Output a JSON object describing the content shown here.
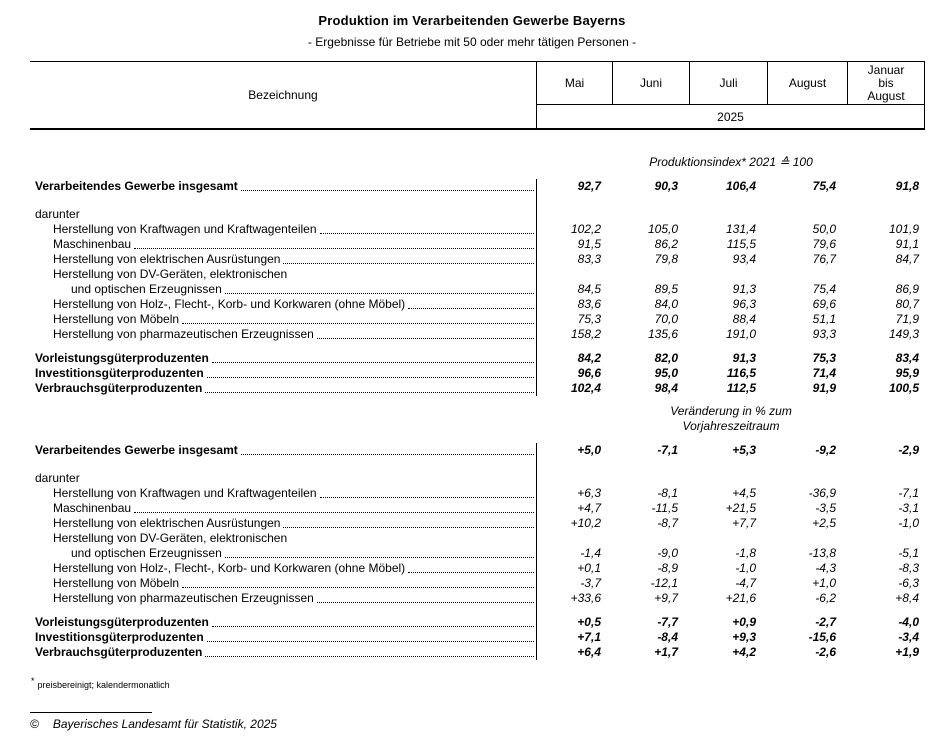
{
  "title": "Produktion im Verarbeitenden Gewerbe Bayerns",
  "subtitle": "- Ergebnisse für Betriebe mit 50 oder mehr tätigen Personen -",
  "table": {
    "label_header": "Bezeichnung",
    "year": "2025",
    "columns": [
      "Mai",
      "Juni",
      "Juli",
      "August",
      "Januar\nbis\nAugust"
    ],
    "sections": [
      {
        "header": "Produktionsindex* 2021 ≙ 100",
        "rows_note": "index values"
      },
      {
        "header": "Veränderung in % zum\nVorjahreszeitraum",
        "rows_note": "percentage change values"
      }
    ],
    "rows": [
      {
        "t": "gap",
        "h": 25,
        "line": false
      },
      {
        "t": "sec",
        "label": "Produktionsindex* 2021 ≙ 100",
        "h": 15
      },
      {
        "t": "gap",
        "h": 9,
        "line": false
      },
      {
        "t": "row",
        "bold": true,
        "indent": 0,
        "dots": true,
        "line": true,
        "label": "Verarbeitendes Gewerbe insgesamt",
        "values": [
          "92,7",
          "90,3",
          "106,4",
          "75,4",
          "91,8"
        ]
      },
      {
        "t": "gap",
        "h": 13,
        "line": true
      },
      {
        "t": "row",
        "bold": false,
        "indent": 0,
        "dots": false,
        "line": true,
        "label": "darunter",
        "values": []
      },
      {
        "t": "row",
        "bold": false,
        "indent": 1,
        "dots": true,
        "line": true,
        "label": "Herstellung von Kraftwagen und Kraftwagenteilen",
        "values": [
          "102,2",
          "105,0",
          "131,4",
          "50,0",
          "101,9"
        ]
      },
      {
        "t": "row",
        "bold": false,
        "indent": 1,
        "dots": true,
        "line": true,
        "label": "Maschinenbau",
        "values": [
          "91,5",
          "86,2",
          "115,5",
          "79,6",
          "91,1"
        ]
      },
      {
        "t": "row",
        "bold": false,
        "indent": 1,
        "dots": true,
        "line": true,
        "label": "Herstellung von elektrischen Ausrüstungen",
        "values": [
          "83,3",
          "79,8",
          "93,4",
          "76,7",
          "84,7"
        ]
      },
      {
        "t": "row",
        "bold": false,
        "indent": 1,
        "dots": false,
        "line": true,
        "label": "Herstellung von DV-Geräten, elektronischen",
        "values": []
      },
      {
        "t": "row",
        "bold": false,
        "indent": 2,
        "dots": true,
        "line": true,
        "label": "und optischen Erzeugnissen",
        "values": [
          "84,5",
          "89,5",
          "91,3",
          "75,4",
          "86,9"
        ]
      },
      {
        "t": "row",
        "bold": false,
        "indent": 1,
        "dots": true,
        "line": true,
        "label": "Herstellung von Holz-, Flecht-, Korb- und Korkwaren (ohne Möbel)",
        "values": [
          "83,6",
          "84,0",
          "96,3",
          "69,6",
          "80,7"
        ]
      },
      {
        "t": "row",
        "bold": false,
        "indent": 1,
        "dots": true,
        "line": true,
        "label": "Herstellung von Möbeln",
        "values": [
          "75,3",
          "70,0",
          "88,4",
          "51,1",
          "71,9"
        ]
      },
      {
        "t": "row",
        "bold": false,
        "indent": 1,
        "dots": true,
        "line": true,
        "label": "Herstellung von pharmazeutischen Erzeugnissen",
        "values": [
          "158,2",
          "135,6",
          "191,0",
          "93,3",
          "149,3"
        ]
      },
      {
        "t": "gap",
        "h": 9,
        "line": true
      },
      {
        "t": "row",
        "bold": true,
        "indent": 0,
        "dots": true,
        "line": true,
        "label": "Vorleistungsgüterproduzenten",
        "values": [
          "84,2",
          "82,0",
          "91,3",
          "75,3",
          "83,4"
        ]
      },
      {
        "t": "row",
        "bold": true,
        "indent": 0,
        "dots": true,
        "line": true,
        "label": "Investitionsgüterproduzenten",
        "values": [
          "96,6",
          "95,0",
          "116,5",
          "71,4",
          "95,9"
        ]
      },
      {
        "t": "row",
        "bold": true,
        "indent": 0,
        "dots": true,
        "line": true,
        "label": "Verbrauchsgüterproduzenten",
        "values": [
          "102,4",
          "98,4",
          "112,5",
          "91,9",
          "100,5"
        ]
      },
      {
        "t": "gap",
        "h": 8,
        "line": false
      },
      {
        "t": "sec",
        "label": "Veränderung in % zum\nVorjahreszeitraum",
        "h": 30
      },
      {
        "t": "gap",
        "h": 9,
        "line": false
      },
      {
        "t": "row",
        "bold": true,
        "indent": 0,
        "dots": true,
        "line": true,
        "label": "Verarbeitendes Gewerbe insgesamt",
        "values": [
          "+5,0",
          "-7,1",
          "+5,3",
          "-9,2",
          "-2,9"
        ]
      },
      {
        "t": "gap",
        "h": 13,
        "line": true
      },
      {
        "t": "row",
        "bold": false,
        "indent": 0,
        "dots": false,
        "line": true,
        "label": "darunter",
        "values": []
      },
      {
        "t": "row",
        "bold": false,
        "indent": 1,
        "dots": true,
        "line": true,
        "label": "Herstellung von Kraftwagen und Kraftwagenteilen",
        "values": [
          "+6,3",
          "-8,1",
          "+4,5",
          "-36,9",
          "-7,1"
        ]
      },
      {
        "t": "row",
        "bold": false,
        "indent": 1,
        "dots": true,
        "line": true,
        "label": "Maschinenbau",
        "values": [
          "+4,7",
          "-11,5",
          "+21,5",
          "-3,5",
          "-3,1"
        ]
      },
      {
        "t": "row",
        "bold": false,
        "indent": 1,
        "dots": true,
        "line": true,
        "label": "Herstellung von elektrischen Ausrüstungen",
        "values": [
          "+10,2",
          "-8,7",
          "+7,7",
          "+2,5",
          "-1,0"
        ]
      },
      {
        "t": "row",
        "bold": false,
        "indent": 1,
        "dots": false,
        "line": true,
        "label": "Herstellung von DV-Geräten, elektronischen",
        "values": []
      },
      {
        "t": "row",
        "bold": false,
        "indent": 2,
        "dots": true,
        "line": true,
        "label": "und optischen Erzeugnissen",
        "values": [
          "-1,4",
          "-9,0",
          "-1,8",
          "-13,8",
          "-5,1"
        ]
      },
      {
        "t": "row",
        "bold": false,
        "indent": 1,
        "dots": true,
        "line": true,
        "label": "Herstellung von Holz-, Flecht-, Korb- und Korkwaren (ohne Möbel)",
        "values": [
          "+0,1",
          "-8,9",
          "-1,0",
          "-4,3",
          "-8,3"
        ]
      },
      {
        "t": "row",
        "bold": false,
        "indent": 1,
        "dots": true,
        "line": true,
        "label": "Herstellung von Möbeln",
        "values": [
          "-3,7",
          "-12,1",
          "-4,7",
          "+1,0",
          "-6,3"
        ]
      },
      {
        "t": "row",
        "bold": false,
        "indent": 1,
        "dots": true,
        "line": true,
        "label": "Herstellung von pharmazeutischen Erzeugnissen",
        "values": [
          "+33,6",
          "+9,7",
          "+21,6",
          "-6,2",
          "+8,4"
        ]
      },
      {
        "t": "gap",
        "h": 9,
        "line": true
      },
      {
        "t": "row",
        "bold": true,
        "indent": 0,
        "dots": true,
        "line": true,
        "label": "Vorleistungsgüterproduzenten",
        "values": [
          "+0,5",
          "-7,7",
          "+0,9",
          "-2,7",
          "-4,0"
        ]
      },
      {
        "t": "row",
        "bold": true,
        "indent": 0,
        "dots": true,
        "line": true,
        "label": "Investitionsgüterproduzenten",
        "values": [
          "+7,1",
          "-8,4",
          "+9,3",
          "-15,6",
          "-3,4"
        ]
      },
      {
        "t": "row",
        "bold": true,
        "indent": 0,
        "dots": true,
        "line": true,
        "label": "Verbrauchsgüterproduzenten",
        "values": [
          "+6,4",
          "+1,7",
          "+4,2",
          "-2,6",
          "+1,9"
        ]
      }
    ]
  },
  "footnote": {
    "symbol": "*",
    "text": "preisbereinigt; kalendermonatlich"
  },
  "copyright": {
    "symbol": "©",
    "text": "Bayerisches Landesamt für Statistik, 2025"
  }
}
